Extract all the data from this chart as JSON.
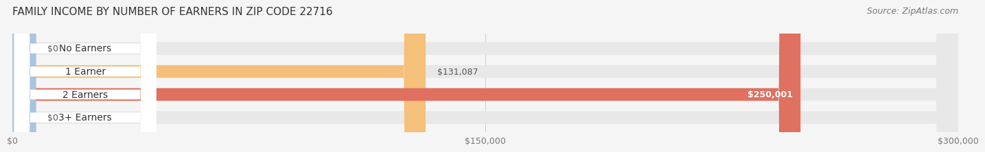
{
  "title": "FAMILY INCOME BY NUMBER OF EARNERS IN ZIP CODE 22716",
  "source": "Source: ZipAtlas.com",
  "categories": [
    "No Earners",
    "1 Earner",
    "2 Earners",
    "3+ Earners"
  ],
  "values": [
    0,
    131087,
    250001,
    0
  ],
  "bar_colors": [
    "#f4a0b0",
    "#f5c07a",
    "#e07060",
    "#a8c4e0"
  ],
  "value_labels": [
    "$0",
    "$131,087",
    "$250,001",
    "$0"
  ],
  "value_label_inside": [
    false,
    false,
    true,
    false
  ],
  "xlim": [
    0,
    300000
  ],
  "xtick_labels": [
    "$0",
    "$150,000",
    "$300,000"
  ],
  "background_color": "#f5f5f5",
  "bar_background_color": "#e8e8e8",
  "bar_height": 0.55,
  "title_fontsize": 11,
  "source_fontsize": 9,
  "label_fontsize": 10,
  "value_fontsize": 9,
  "tick_fontsize": 9
}
